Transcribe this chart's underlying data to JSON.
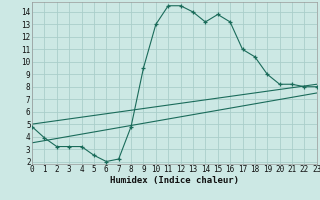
{
  "xlabel": "Humidex (Indice chaleur)",
  "bg_color": "#cce8e4",
  "grid_color": "#aaceca",
  "line_color": "#1a6b5a",
  "line1_x": [
    0,
    1,
    2,
    3,
    4,
    5,
    6,
    7,
    8,
    9,
    10,
    11,
    12,
    13,
    14,
    15,
    16,
    17,
    18,
    19,
    20,
    21,
    22,
    23
  ],
  "line1_y": [
    4.8,
    3.9,
    3.2,
    3.2,
    3.2,
    2.5,
    2.0,
    2.2,
    4.8,
    9.5,
    13.0,
    14.5,
    14.5,
    14.0,
    13.2,
    13.8,
    13.2,
    11.0,
    10.4,
    9.0,
    8.2,
    8.2,
    8.0,
    8.0
  ],
  "line2_x": [
    0,
    23
  ],
  "line2_y": [
    5.0,
    8.2
  ],
  "line3_x": [
    0,
    23
  ],
  "line3_y": [
    3.5,
    7.5
  ],
  "xlim": [
    0,
    23
  ],
  "ylim": [
    1.8,
    14.8
  ],
  "yticks": [
    2,
    3,
    4,
    5,
    6,
    7,
    8,
    9,
    10,
    11,
    12,
    13,
    14
  ],
  "xticks": [
    0,
    1,
    2,
    3,
    4,
    5,
    6,
    7,
    8,
    9,
    10,
    11,
    12,
    13,
    14,
    15,
    16,
    17,
    18,
    19,
    20,
    21,
    22,
    23
  ],
  "xlabel_fontsize": 6.5,
  "tick_fontsize": 5.5
}
